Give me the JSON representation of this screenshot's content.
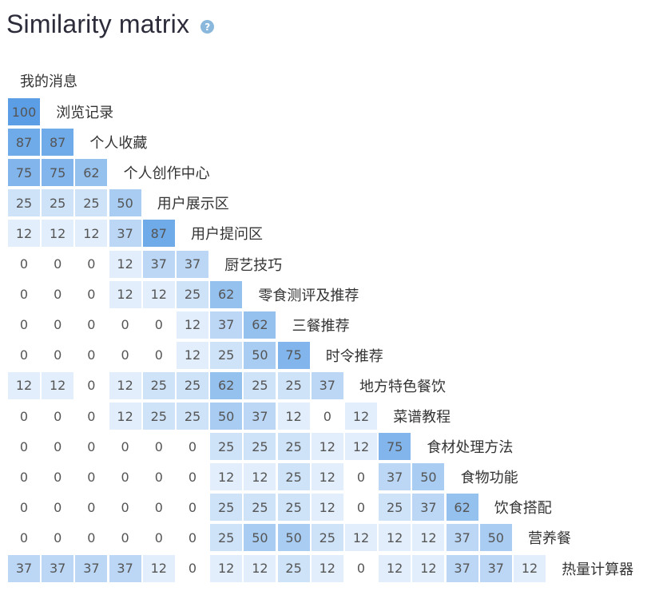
{
  "header": {
    "title": "Similarity matrix",
    "help_icon": "question-circle-icon"
  },
  "chart_data": {
    "type": "heatmap",
    "title": "Similarity matrix",
    "colors": {
      "low": "#f4f9fe",
      "high": "#5b9ee6",
      "zero": "#ffffff",
      "text": "#555555"
    },
    "labels": [
      "我的消息",
      "浏览记录",
      "个人收藏",
      "个人创作中心",
      "用户展示区",
      "用户提问区",
      "厨艺技巧",
      "零食测评及推荐",
      "三餐推荐",
      "时令推荐",
      "地方特色餐饮",
      "菜谱教程",
      "食材处理方法",
      "食物功能",
      "饮食搭配",
      "营养餐",
      "热量计算器"
    ],
    "rows": [
      [
        100
      ],
      [
        87,
        87
      ],
      [
        75,
        75,
        62
      ],
      [
        25,
        25,
        25,
        50
      ],
      [
        12,
        12,
        12,
        37,
        87
      ],
      [
        0,
        0,
        0,
        12,
        37,
        37
      ],
      [
        0,
        0,
        0,
        12,
        12,
        25,
        62
      ],
      [
        0,
        0,
        0,
        0,
        0,
        12,
        37,
        62
      ],
      [
        0,
        0,
        0,
        0,
        0,
        12,
        25,
        50,
        75
      ],
      [
        12,
        12,
        0,
        12,
        25,
        25,
        62,
        25,
        25,
        37
      ],
      [
        0,
        0,
        0,
        12,
        25,
        25,
        50,
        37,
        12,
        0,
        12
      ],
      [
        0,
        0,
        0,
        0,
        0,
        0,
        25,
        25,
        25,
        12,
        12,
        75
      ],
      [
        0,
        0,
        0,
        0,
        0,
        0,
        12,
        12,
        25,
        12,
        0,
        37,
        50
      ],
      [
        0,
        0,
        0,
        0,
        0,
        0,
        25,
        25,
        25,
        12,
        0,
        25,
        37,
        62
      ],
      [
        0,
        0,
        0,
        0,
        0,
        0,
        25,
        50,
        50,
        25,
        12,
        12,
        12,
        37,
        50
      ],
      [
        37,
        37,
        37,
        37,
        12,
        0,
        12,
        12,
        25,
        12,
        0,
        12,
        12,
        37,
        37,
        12
      ]
    ]
  }
}
